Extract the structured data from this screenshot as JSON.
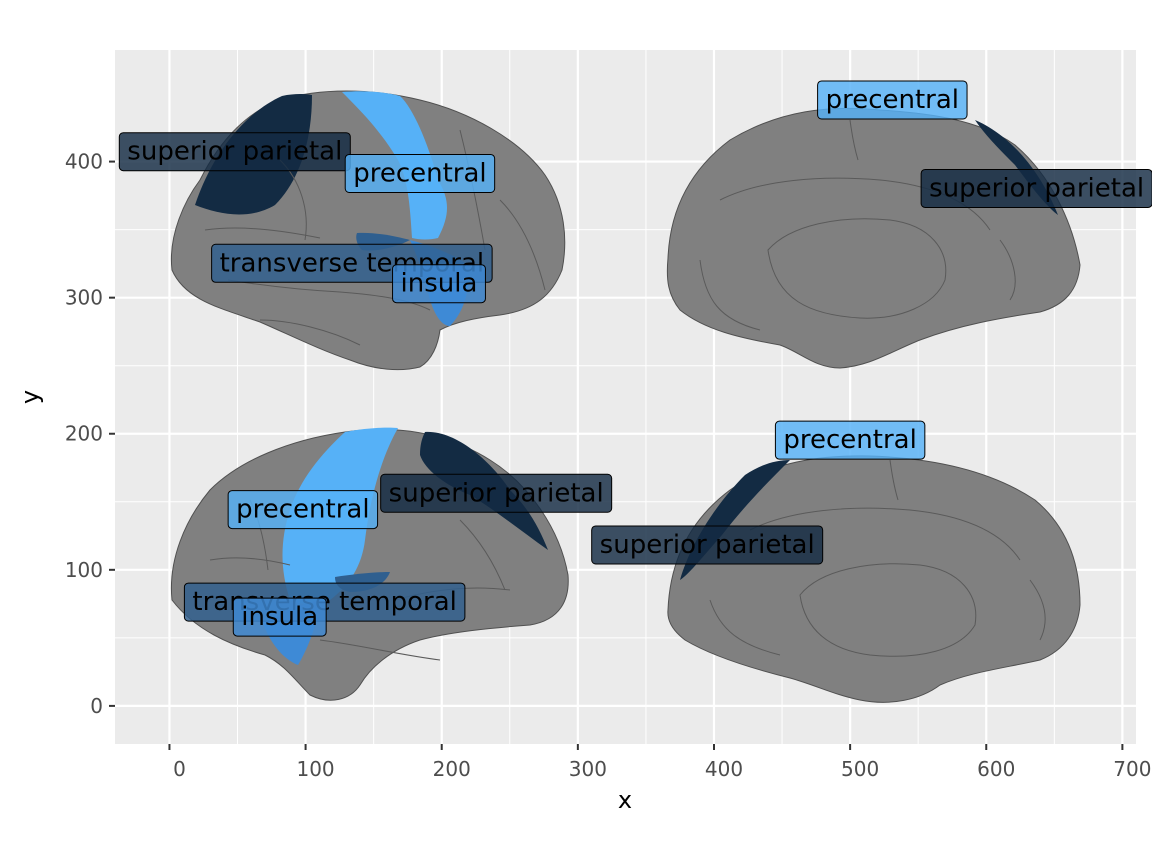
{
  "chart_data": {
    "type": "scatter",
    "title": "",
    "xlabel": "x",
    "ylabel": "y",
    "xlim": [
      -40,
      710
    ],
    "ylim": [
      -28,
      482
    ],
    "x_ticks": [
      0,
      100,
      200,
      300,
      400,
      500,
      600,
      700
    ],
    "y_ticks": [
      0,
      100,
      200,
      300,
      400
    ],
    "x_tick_labels": [
      "0",
      "100",
      "200",
      "300",
      "400",
      "500",
      "600",
      "700"
    ],
    "y_tick_labels": [
      "0",
      "100",
      "200",
      "300",
      "400"
    ],
    "grid": true,
    "legend": "none",
    "colors": {
      "panel_background": "#ebebeb",
      "grid": "#ffffff",
      "brain": "#808080",
      "precentral": "#56b1f7",
      "insula": "#3e8ad6",
      "transverse_temporal": "#2f5f8f",
      "superior_parietal": "#132b43"
    },
    "labels": [
      {
        "text": "superior parietal",
        "x": 48,
        "y": 408,
        "region": "superior_parietal"
      },
      {
        "text": "precentral",
        "x": 184,
        "y": 392,
        "region": "precentral"
      },
      {
        "text": "transverse temporal",
        "x": 134,
        "y": 326,
        "region": "transverse_temporal"
      },
      {
        "text": "insula",
        "x": 198,
        "y": 311,
        "region": "insula"
      },
      {
        "text": "precentral",
        "x": 531,
        "y": 446,
        "region": "precentral"
      },
      {
        "text": "superior parietal",
        "x": 637,
        "y": 381,
        "region": "superior_parietal"
      },
      {
        "text": "precentral",
        "x": 500,
        "y": 196,
        "region": "precentral"
      },
      {
        "text": "superior parietal",
        "x": 240,
        "y": 157,
        "region": "superior_parietal"
      },
      {
        "text": "precentral",
        "x": 98,
        "y": 145,
        "region": "precentral"
      },
      {
        "text": "superior parietal",
        "x": 395,
        "y": 119,
        "region": "superior_parietal"
      },
      {
        "text": "transverse temporal",
        "x": 114,
        "y": 77,
        "region": "transverse_temporal"
      },
      {
        "text": "insula",
        "x": 81,
        "y": 66,
        "region": "insula"
      }
    ]
  }
}
